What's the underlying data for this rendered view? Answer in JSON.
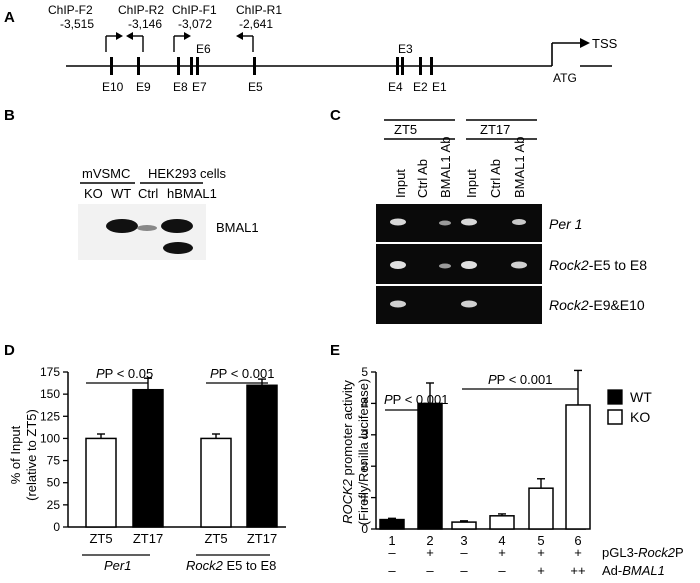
{
  "panels": {
    "a": "A",
    "b": "B",
    "c": "C",
    "d": "D",
    "e": "E"
  },
  "panel_a": {
    "primers": [
      {
        "name": "ChIP-F2",
        "pos": "-3,515"
      },
      {
        "name": "ChIP-R2",
        "pos": "-3,146"
      },
      {
        "name": "ChIP-F1",
        "pos": "-3,072"
      },
      {
        "name": "ChIP-R1",
        "pos": "-2,641"
      }
    ],
    "exons_top": {
      "e6": "E6",
      "e3": "E3"
    },
    "exons_bottom": {
      "e10": "E10",
      "e9": "E9",
      "e8": "E8",
      "e7": "E7",
      "e5": "E5",
      "e4": "E4",
      "e2": "E2",
      "e1": "E1"
    },
    "atg": "ATG",
    "tss": "TSS"
  },
  "panel_b": {
    "group1": "mVSMC",
    "group2": "HEK293 cells",
    "lanes": [
      "KO",
      "WT",
      "Ctrl",
      "hBMAL1"
    ],
    "band_label": "BMAL1"
  },
  "panel_c": {
    "groups": [
      "ZT5",
      "ZT17"
    ],
    "lanes": [
      "Input",
      "Ctrl Ab",
      "BMAL1 Ab",
      "Input",
      "Ctrl Ab",
      "BMAL1 Ab"
    ],
    "rows": [
      {
        "pre": "",
        "main": "Per 1",
        "suf": ""
      },
      {
        "pre": "Rock2",
        "main": "-E5 to E8",
        "suf": ""
      },
      {
        "pre": "Rock2",
        "main": "-E9&E10",
        "suf": ""
      }
    ]
  },
  "panel_d": {
    "ylabel1": "% of Input",
    "ylabel2": "(relative to ZT5)",
    "sig1": "P < 0.05",
    "sig2": "P < 0.001",
    "group1_label": "Per1",
    "group2_label_a": "Rock2",
    "group2_label_b": " E5 to E8",
    "chart_data": {
      "type": "bar",
      "categories": [
        "ZT5",
        "ZT17",
        "ZT5",
        "ZT17"
      ],
      "values": [
        100,
        155,
        100,
        160
      ],
      "errors": [
        5,
        13,
        5,
        7
      ],
      "fills": [
        "#ffffff",
        "#000000",
        "#ffffff",
        "#000000"
      ],
      "ylim": [
        0,
        175
      ],
      "yticks": [
        0,
        25,
        50,
        75,
        100,
        125,
        150,
        175
      ]
    }
  },
  "panel_e": {
    "ylabel1": "ROCK2 promoter activity",
    "ylabel2": "(Firefly/Renilla luciferase)",
    "sig1": "P < 0.001",
    "sig2": "P < 0.001",
    "legend": [
      {
        "label": "WT",
        "color": "#000000"
      },
      {
        "label": "KO",
        "color": "#ffffff"
      }
    ],
    "row1_label": "pGL3-Rock2P",
    "row2_label": "Ad-BMAL1",
    "row1": [
      "–",
      "+",
      "–",
      "+",
      "+",
      "+"
    ],
    "row2": [
      "–",
      "–",
      "–",
      "–",
      "+",
      "++"
    ],
    "chart_data": {
      "type": "bar",
      "categories": [
        "1",
        "2",
        "3",
        "4",
        "5",
        "6"
      ],
      "values": [
        0.3,
        4.0,
        0.22,
        0.42,
        1.3,
        3.95
      ],
      "errors": [
        0.04,
        0.65,
        0.04,
        0.06,
        0.3,
        1.1
      ],
      "fills": [
        "#000000",
        "#000000",
        "#ffffff",
        "#ffffff",
        "#ffffff",
        "#ffffff"
      ],
      "ylim": [
        0,
        5
      ],
      "yticks": [
        0,
        1,
        2,
        3,
        4,
        5
      ]
    }
  }
}
